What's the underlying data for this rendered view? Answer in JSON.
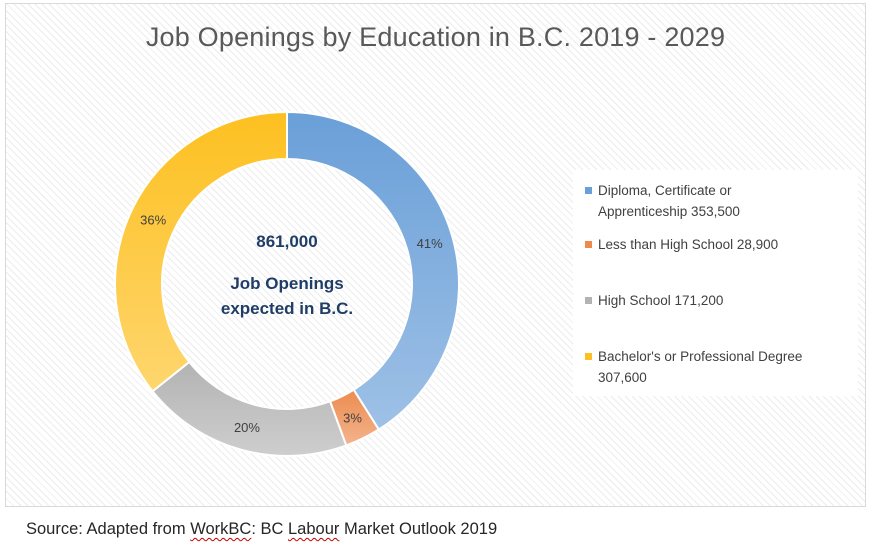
{
  "chart_data": {
    "type": "pie",
    "donut": true,
    "title": "Job Openings by Education in B.C. 2019 - 2029",
    "center_total": "861,000",
    "center_caption": [
      "Job Openings",
      "expected in B.C."
    ],
    "slices": [
      {
        "legend": "Diploma, Certificate or Apprenticeship 353,500",
        "legend_lines": [
          "Diploma, Certificate or",
          "Apprenticeship 353,500"
        ],
        "value": 353500,
        "percent_label": "41%",
        "color": "#6a9fd8"
      },
      {
        "legend": "Less than High School 28,900",
        "legend_lines": [
          "Less than High School 28,900"
        ],
        "value": 28900,
        "percent_label": "3%",
        "color": "#ed8b4f"
      },
      {
        "legend": "High School 171,200",
        "legend_lines": [
          "High School 171,200"
        ],
        "value": 171200,
        "percent_label": "20%",
        "color": "#b3b3b3"
      },
      {
        "legend": "Bachelor's or Professional Degree 307,600",
        "legend_lines": [
          "Bachelor's or Professional Degree",
          "307,600"
        ],
        "value": 307600,
        "percent_label": "36%",
        "color": "#fdc020"
      }
    ],
    "legend_position": "right"
  },
  "source": {
    "prefix": "Source: Adapted from ",
    "link1": "WorkBC",
    "middle": ": BC ",
    "link2": "Labour",
    "suffix": " Market Outlook 2019"
  }
}
